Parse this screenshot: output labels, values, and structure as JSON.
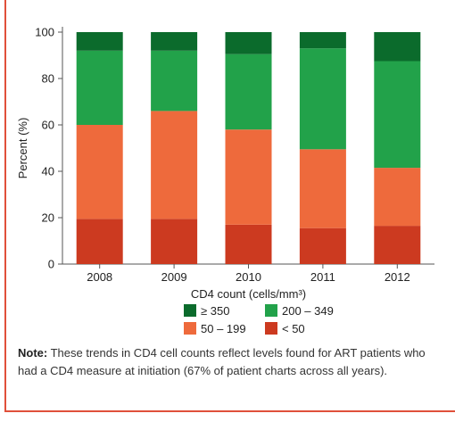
{
  "chart_data": {
    "type": "bar",
    "stacked": true,
    "title": "",
    "xlabel": "CD4 count (cells/mm³)",
    "ylabel": "Percent (%)",
    "ylim": [
      0,
      100
    ],
    "yticks": [
      0,
      20,
      40,
      60,
      80,
      100
    ],
    "categories": [
      "2008",
      "2009",
      "2010",
      "2011",
      "2012"
    ],
    "series": [
      {
        "name": "< 50",
        "color": "#cc3a20",
        "values": [
          19.5,
          19.5,
          17,
          15.5,
          16.5
        ]
      },
      {
        "name": "50 – 199",
        "color": "#ee6a3c",
        "values": [
          40.5,
          46.5,
          41,
          34,
          25
        ]
      },
      {
        "name": "200 – 349",
        "color": "#22a24a",
        "values": [
          32,
          26,
          32.5,
          43.5,
          46
        ]
      },
      {
        "name": "≥ 350",
        "color": "#0b6b2c",
        "values": [
          8,
          8,
          9.5,
          7,
          12.5
        ]
      }
    ],
    "legend": {
      "placement": "bottom",
      "order": [
        "≥ 350",
        "200 – 349",
        "50 – 199",
        "< 50"
      ]
    },
    "grid": false
  },
  "note": {
    "bold": "Note:",
    "text": " These trends in CD4 cell counts reflect levels found for ART patients who had a CD4 measure at initiation (67% of patient charts across all years)."
  }
}
